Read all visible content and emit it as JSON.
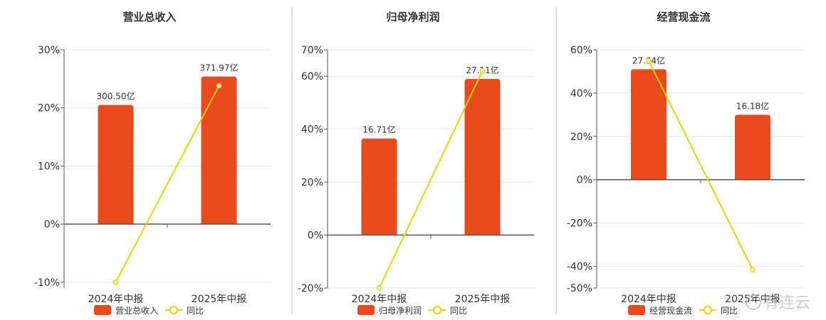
{
  "colors": {
    "bar": "#E8491D",
    "line": "#F2CF00",
    "grid": "#E6E6E6",
    "axis": "#555555",
    "divider": "#BDBDBD",
    "text": "#333333",
    "watermark": "#BBBBBB"
  },
  "watermark": "有连云",
  "chart_data": [
    {
      "type": "bar",
      "title": "营业总收入",
      "categories": [
        "2024年中报",
        "2025年中报"
      ],
      "series": [
        {
          "name": "营业总收入",
          "kind": "bar",
          "values": [
            20.5,
            25.4
          ],
          "labels": [
            "300.50亿",
            "371.97亿"
          ]
        },
        {
          "name": "同比",
          "kind": "line",
          "values": [
            -10.0,
            23.8
          ]
        }
      ],
      "yticks": [
        "30%",
        "20%",
        "10%",
        "0%",
        "-10%"
      ],
      "ylim": [
        -11,
        30
      ]
    },
    {
      "type": "bar",
      "title": "归母净利润",
      "categories": [
        "2024年中报",
        "2025年中报"
      ],
      "series": [
        {
          "name": "归母净利润",
          "kind": "bar",
          "values": [
            36.5,
            59.0
          ],
          "labels": [
            "16.71亿",
            "27.11亿"
          ]
        },
        {
          "name": "同比",
          "kind": "line",
          "values": [
            -20.0,
            62.0
          ]
        }
      ],
      "yticks": [
        "70%",
        "60%",
        "40%",
        "20%",
        "0%",
        "-20%"
      ],
      "ylim": [
        -20,
        70
      ]
    },
    {
      "type": "bar",
      "title": "经营现金流",
      "categories": [
        "2024年中报",
        "2025年中报"
      ],
      "series": [
        {
          "name": "经营现金流",
          "kind": "bar",
          "values": [
            51.0,
            30.0
          ],
          "labels": [
            "27.64亿",
            "16.18亿"
          ]
        },
        {
          "name": "同比",
          "kind": "line",
          "values": [
            55.0,
            -41.5
          ]
        }
      ],
      "yticks": [
        "60%",
        "40%",
        "20%",
        "0%",
        "-20%",
        "-40%",
        "-50%"
      ],
      "ylim": [
        -50,
        60
      ]
    }
  ]
}
